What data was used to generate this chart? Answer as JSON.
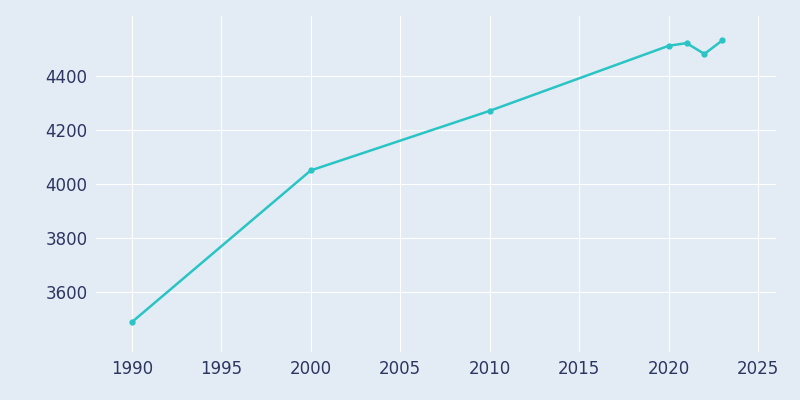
{
  "years": [
    1990,
    2000,
    2010,
    2020,
    2021,
    2022,
    2023
  ],
  "population": [
    3490,
    4050,
    4270,
    4510,
    4520,
    4480,
    4530
  ],
  "line_color": "#2ac4c4",
  "marker": "o",
  "marker_size": 3.5,
  "background_color": "#E3ECF5",
  "plot_bg_color": "#E3ECF5",
  "grid_color": "#FFFFFF",
  "xlim": [
    1988,
    2026
  ],
  "ylim": [
    3380,
    4620
  ],
  "xticks": [
    1990,
    1995,
    2000,
    2005,
    2010,
    2015,
    2020,
    2025
  ],
  "yticks": [
    3600,
    3800,
    4000,
    4200,
    4400
  ],
  "tick_color": "#2D3561",
  "tick_fontsize": 12,
  "linewidth": 1.8
}
